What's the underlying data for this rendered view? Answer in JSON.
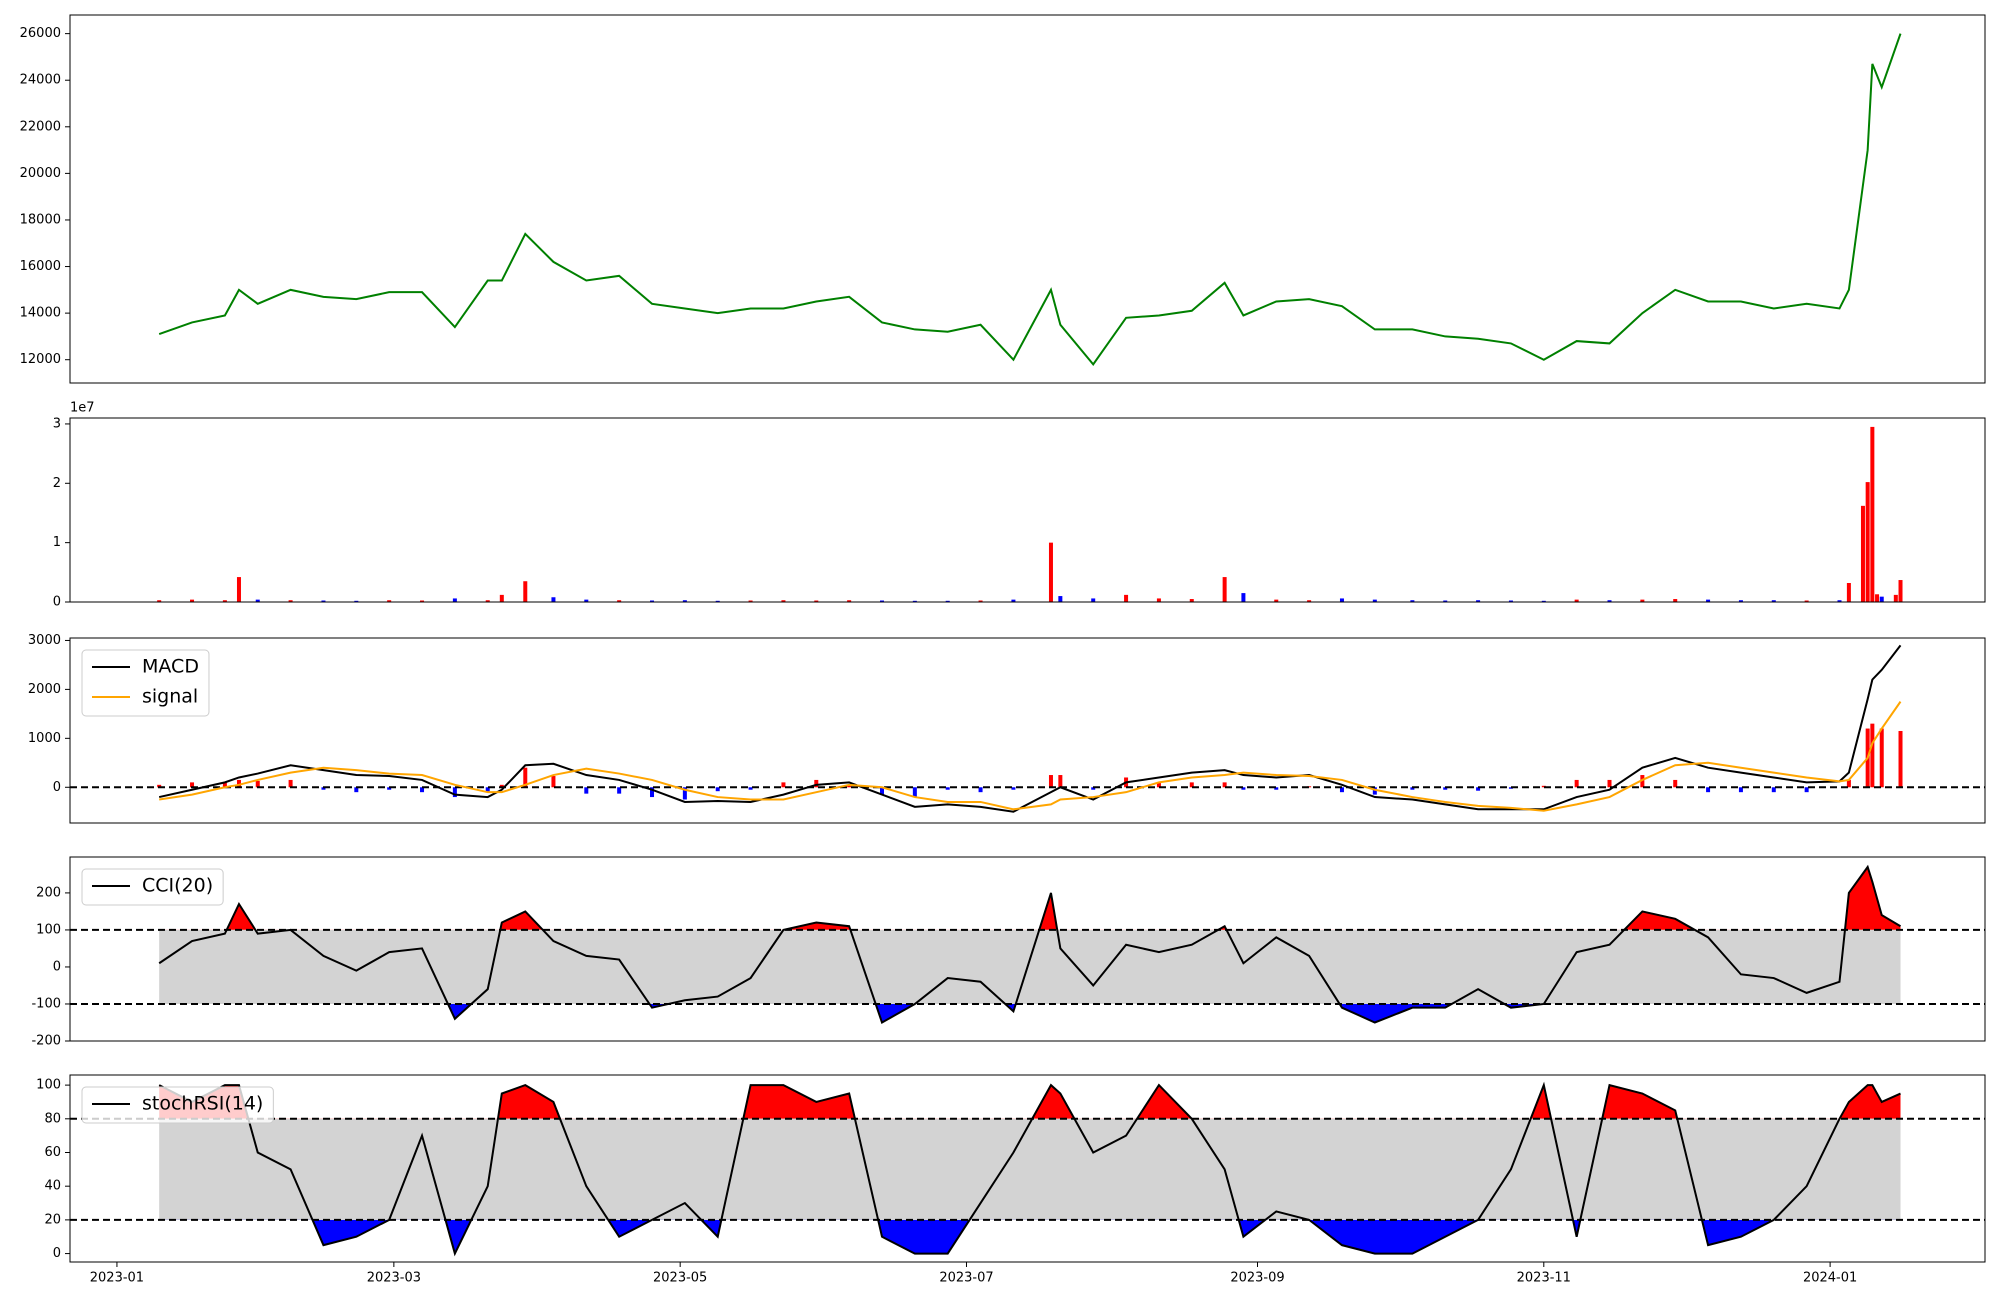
{
  "chart_data": [
    {
      "type": "line",
      "color": "green",
      "xlim": [
        "2022-12-22",
        "2024-02-03"
      ],
      "x": [
        "2023-01-10",
        "2023-01-17",
        "2023-01-24",
        "2023-01-27",
        "2023-01-31",
        "2023-02-07",
        "2023-02-14",
        "2023-02-21",
        "2023-02-28",
        "2023-03-07",
        "2023-03-14",
        "2023-03-21",
        "2023-03-24",
        "2023-03-29",
        "2023-04-04",
        "2023-04-11",
        "2023-04-18",
        "2023-04-25",
        "2023-05-02",
        "2023-05-09",
        "2023-05-16",
        "2023-05-23",
        "2023-05-30",
        "2023-06-06",
        "2023-06-13",
        "2023-06-20",
        "2023-06-27",
        "2023-07-04",
        "2023-07-11",
        "2023-07-19",
        "2023-07-21",
        "2023-07-28",
        "2023-08-04",
        "2023-08-11",
        "2023-08-18",
        "2023-08-25",
        "2023-08-29",
        "2023-09-05",
        "2023-09-12",
        "2023-09-19",
        "2023-09-26",
        "2023-10-04",
        "2023-10-11",
        "2023-10-18",
        "2023-10-25",
        "2023-11-01",
        "2023-11-08",
        "2023-11-15",
        "2023-11-22",
        "2023-11-29",
        "2023-12-06",
        "2023-12-13",
        "2023-12-20",
        "2023-12-27",
        "2024-01-03",
        "2024-01-05",
        "2024-01-09",
        "2024-01-10",
        "2024-01-12",
        "2024-01-16"
      ],
      "values": [
        13100,
        13600,
        13900,
        15000,
        14400,
        15000,
        14700,
        14600,
        14900,
        14900,
        13400,
        15400,
        15400,
        17400,
        16200,
        15400,
        15600,
        14400,
        14200,
        14000,
        14200,
        14200,
        14500,
        14700,
        13600,
        13300,
        13200,
        13500,
        12000,
        15000,
        13500,
        11800,
        13800,
        13900,
        14100,
        15300,
        13900,
        14500,
        14600,
        14300,
        13300,
        13300,
        13000,
        12900,
        12700,
        12000,
        12800,
        12700,
        14000,
        15000,
        14500,
        14500,
        14200,
        14400,
        14200,
        15000,
        21000,
        24700,
        23700,
        26000
      ],
      "ylim": [
        11000,
        26800
      ],
      "yticks": [
        12000,
        14000,
        16000,
        18000,
        20000,
        22000,
        24000,
        26000
      ]
    },
    {
      "type": "bar",
      "offset_text": "1e7",
      "xlim": [
        "2022-12-22",
        "2024-02-03"
      ],
      "x": [
        "2023-01-10",
        "2023-01-17",
        "2023-01-24",
        "2023-01-27",
        "2023-01-31",
        "2023-02-07",
        "2023-02-14",
        "2023-02-21",
        "2023-02-28",
        "2023-03-07",
        "2023-03-14",
        "2023-03-21",
        "2023-03-24",
        "2023-03-29",
        "2023-04-04",
        "2023-04-11",
        "2023-04-18",
        "2023-04-25",
        "2023-05-02",
        "2023-05-09",
        "2023-05-16",
        "2023-05-23",
        "2023-05-30",
        "2023-06-06",
        "2023-06-13",
        "2023-06-20",
        "2023-06-27",
        "2023-07-04",
        "2023-07-11",
        "2023-07-19",
        "2023-07-21",
        "2023-07-28",
        "2023-08-04",
        "2023-08-11",
        "2023-08-18",
        "2023-08-25",
        "2023-08-29",
        "2023-09-05",
        "2023-09-12",
        "2023-09-19",
        "2023-09-26",
        "2023-10-04",
        "2023-10-11",
        "2023-10-18",
        "2023-10-25",
        "2023-11-01",
        "2023-11-08",
        "2023-11-15",
        "2023-11-22",
        "2023-11-29",
        "2023-12-06",
        "2023-12-13",
        "2023-12-20",
        "2023-12-27",
        "2024-01-03",
        "2024-01-05",
        "2024-01-08",
        "2024-01-09",
        "2024-01-10",
        "2024-01-11",
        "2024-01-12",
        "2024-01-15",
        "2024-01-16"
      ],
      "values": [
        300000,
        400000,
        300000,
        4200000,
        400000,
        300000,
        250000,
        200000,
        300000,
        250000,
        600000,
        300000,
        1200000,
        3500000,
        800000,
        400000,
        300000,
        250000,
        300000,
        200000,
        250000,
        300000,
        250000,
        300000,
        250000,
        200000,
        200000,
        250000,
        400000,
        10000000,
        1000000,
        600000,
        1200000,
        600000,
        500000,
        4200000,
        1500000,
        400000,
        300000,
        600000,
        400000,
        300000,
        250000,
        300000,
        250000,
        200000,
        400000,
        300000,
        400000,
        500000,
        400000,
        300000,
        300000,
        250000,
        300000,
        3200000,
        16200000,
        20200000,
        29500000,
        1300000,
        900000,
        1200000,
        3700000
      ],
      "colors": [
        "red",
        "red",
        "red",
        "red",
        "blue",
        "red",
        "blue",
        "blue",
        "red",
        "red",
        "blue",
        "red",
        "red",
        "red",
        "blue",
        "blue",
        "red",
        "blue",
        "blue",
        "blue",
        "red",
        "red",
        "red",
        "red",
        "blue",
        "blue",
        "blue",
        "red",
        "blue",
        "red",
        "blue",
        "blue",
        "red",
        "red",
        "red",
        "red",
        "blue",
        "red",
        "red",
        "blue",
        "blue",
        "blue",
        "blue",
        "blue",
        "blue",
        "blue",
        "red",
        "blue",
        "red",
        "red",
        "blue",
        "blue",
        "blue",
        "red",
        "blue",
        "red",
        "red",
        "red",
        "red",
        "red",
        "blue",
        "red",
        "red"
      ],
      "ylim": [
        0,
        31000000
      ],
      "yticks": [
        0,
        {
          "value": 10000000,
          "label": "1"
        },
        {
          "value": 20000000,
          "label": "2"
        },
        {
          "value": 30000000,
          "label": "3"
        }
      ]
    },
    {
      "type": "macd",
      "legend": "upper left",
      "hline": 0,
      "xlim": [
        "2022-12-22",
        "2024-02-03"
      ],
      "x": [
        "2023-01-10",
        "2023-01-17",
        "2023-01-24",
        "2023-01-27",
        "2023-01-31",
        "2023-02-07",
        "2023-02-14",
        "2023-02-21",
        "2023-02-28",
        "2023-03-07",
        "2023-03-14",
        "2023-03-21",
        "2023-03-24",
        "2023-03-29",
        "2023-04-04",
        "2023-04-11",
        "2023-04-18",
        "2023-04-25",
        "2023-05-02",
        "2023-05-09",
        "2023-05-16",
        "2023-05-23",
        "2023-05-30",
        "2023-06-06",
        "2023-06-13",
        "2023-06-20",
        "2023-06-27",
        "2023-07-04",
        "2023-07-11",
        "2023-07-19",
        "2023-07-21",
        "2023-07-28",
        "2023-08-04",
        "2023-08-11",
        "2023-08-18",
        "2023-08-25",
        "2023-08-29",
        "2023-09-05",
        "2023-09-12",
        "2023-09-19",
        "2023-09-26",
        "2023-10-04",
        "2023-10-11",
        "2023-10-18",
        "2023-10-25",
        "2023-11-01",
        "2023-11-08",
        "2023-11-15",
        "2023-11-22",
        "2023-11-29",
        "2023-12-06",
        "2023-12-13",
        "2023-12-20",
        "2023-12-27",
        "2024-01-03",
        "2024-01-05",
        "2024-01-09",
        "2024-01-10",
        "2024-01-12",
        "2024-01-16"
      ],
      "series": [
        {
          "name": "MACD",
          "color": "black",
          "values": [
            -200,
            -50,
            100,
            200,
            280,
            450,
            350,
            250,
            230,
            150,
            -150,
            -200,
            -50,
            450,
            480,
            250,
            150,
            -50,
            -300,
            -280,
            -300,
            -150,
            50,
            100,
            -150,
            -400,
            -350,
            -400,
            -500,
            -100,
            0,
            -250,
            100,
            200,
            300,
            350,
            250,
            200,
            250,
            50,
            -200,
            -250,
            -350,
            -450,
            -450,
            -450,
            -200,
            -50,
            400,
            600,
            400,
            300,
            200,
            100,
            120,
            300,
            1800,
            2200,
            2400,
            2900
          ]
        },
        {
          "name": "signal",
          "color": "orange",
          "values": [
            -250,
            -150,
            0,
            50,
            150,
            300,
            400,
            350,
            280,
            250,
            50,
            -100,
            -100,
            50,
            250,
            380,
            280,
            150,
            -50,
            -200,
            -250,
            -250,
            -100,
            50,
            0,
            -200,
            -300,
            -300,
            -450,
            -350,
            -250,
            -200,
            -100,
            100,
            200,
            250,
            300,
            250,
            230,
            150,
            -50,
            -200,
            -300,
            -380,
            -420,
            -480,
            -350,
            -200,
            150,
            450,
            500,
            400,
            300,
            200,
            120,
            150,
            600,
            900,
            1200,
            1750
          ]
        }
      ],
      "histogram": {
        "up_color": "red",
        "down_color": "blue",
        "values": [
          50,
          100,
          100,
          150,
          130,
          150,
          -50,
          -100,
          -50,
          -100,
          -200,
          -100,
          50,
          400,
          230,
          -130,
          -130,
          -200,
          -250,
          -80,
          -50,
          100,
          150,
          50,
          -150,
          -200,
          -50,
          -100,
          -50,
          250,
          250,
          -50,
          200,
          100,
          100,
          100,
          -50,
          -50,
          20,
          -100,
          -150,
          -50,
          -50,
          -70,
          -30,
          30,
          150,
          150,
          250,
          150,
          -100,
          -100,
          -100,
          -100,
          0,
          150,
          1200,
          1300,
          1200,
          1150
        ]
      },
      "ylim": [
        -730,
        3050
      ],
      "yticks": [
        0,
        1000,
        2000,
        3000
      ]
    },
    {
      "type": "oscillator",
      "legend": "upper left",
      "thresholds": [
        -100,
        100
      ],
      "band_color": "lightgray",
      "above_color": "red",
      "below_color": "blue",
      "xlim": [
        "2022-12-22",
        "2024-02-03"
      ],
      "x": [
        "2023-01-10",
        "2023-01-17",
        "2023-01-24",
        "2023-01-27",
        "2023-01-31",
        "2023-02-07",
        "2023-02-14",
        "2023-02-21",
        "2023-02-28",
        "2023-03-07",
        "2023-03-14",
        "2023-03-21",
        "2023-03-24",
        "2023-03-29",
        "2023-04-04",
        "2023-04-11",
        "2023-04-18",
        "2023-04-25",
        "2023-05-02",
        "2023-05-09",
        "2023-05-16",
        "2023-05-23",
        "2023-05-30",
        "2023-06-06",
        "2023-06-13",
        "2023-06-20",
        "2023-06-27",
        "2023-07-04",
        "2023-07-11",
        "2023-07-19",
        "2023-07-21",
        "2023-07-28",
        "2023-08-04",
        "2023-08-11",
        "2023-08-18",
        "2023-08-25",
        "2023-08-29",
        "2023-09-05",
        "2023-09-12",
        "2023-09-19",
        "2023-09-26",
        "2023-10-04",
        "2023-10-11",
        "2023-10-18",
        "2023-10-25",
        "2023-11-01",
        "2023-11-08",
        "2023-11-15",
        "2023-11-22",
        "2023-11-29",
        "2023-12-06",
        "2023-12-13",
        "2023-12-20",
        "2023-12-27",
        "2024-01-03",
        "2024-01-05",
        "2024-01-09",
        "2024-01-10",
        "2024-01-12",
        "2024-01-16"
      ],
      "series": [
        {
          "name": "CCI(20)",
          "color": "black",
          "values": [
            10,
            70,
            90,
            170,
            90,
            100,
            30,
            -10,
            40,
            50,
            -140,
            -60,
            120,
            150,
            70,
            30,
            20,
            -110,
            -90,
            -80,
            -30,
            100,
            120,
            110,
            -150,
            -100,
            -30,
            -40,
            -120,
            200,
            50,
            -50,
            60,
            40,
            60,
            110,
            10,
            80,
            30,
            -110,
            -150,
            -110,
            -110,
            -60,
            -110,
            -100,
            40,
            60,
            150,
            130,
            80,
            -20,
            -30,
            -70,
            -40,
            200,
            270,
            230,
            140,
            110
          ]
        }
      ],
      "ylim": [
        -200,
        297
      ],
      "yticks": [
        -200,
        -100,
        0,
        100,
        200
      ]
    },
    {
      "type": "oscillator",
      "legend": "upper left",
      "thresholds": [
        20,
        80
      ],
      "band_color": "lightgray",
      "above_color": "red",
      "below_color": "blue",
      "xlim": [
        "2022-12-22",
        "2024-02-03"
      ],
      "x": [
        "2023-01-10",
        "2023-01-17",
        "2023-01-24",
        "2023-01-27",
        "2023-01-31",
        "2023-02-07",
        "2023-02-14",
        "2023-02-21",
        "2023-02-28",
        "2023-03-07",
        "2023-03-14",
        "2023-03-21",
        "2023-03-24",
        "2023-03-29",
        "2023-04-04",
        "2023-04-11",
        "2023-04-18",
        "2023-04-25",
        "2023-05-02",
        "2023-05-09",
        "2023-05-16",
        "2023-05-23",
        "2023-05-30",
        "2023-06-06",
        "2023-06-13",
        "2023-06-20",
        "2023-06-27",
        "2023-07-04",
        "2023-07-11",
        "2023-07-19",
        "2023-07-21",
        "2023-07-28",
        "2023-08-04",
        "2023-08-11",
        "2023-08-18",
        "2023-08-25",
        "2023-08-29",
        "2023-09-05",
        "2023-09-12",
        "2023-09-19",
        "2023-09-26",
        "2023-10-04",
        "2023-10-11",
        "2023-10-18",
        "2023-10-25",
        "2023-11-01",
        "2023-11-08",
        "2023-11-15",
        "2023-11-22",
        "2023-11-29",
        "2023-12-06",
        "2023-12-13",
        "2023-12-20",
        "2023-12-27",
        "2024-01-03",
        "2024-01-05",
        "2024-01-09",
        "2024-01-10",
        "2024-01-12",
        "2024-01-16"
      ],
      "series": [
        {
          "name": "stochRSI(14)",
          "color": "black",
          "values": [
            100,
            90,
            100,
            100,
            60,
            50,
            5,
            10,
            20,
            70,
            0,
            40,
            95,
            100,
            90,
            40,
            10,
            20,
            30,
            10,
            100,
            100,
            90,
            95,
            10,
            0,
            0,
            30,
            60,
            100,
            95,
            60,
            70,
            100,
            80,
            50,
            10,
            25,
            20,
            5,
            0,
            0,
            10,
            20,
            50,
            100,
            10,
            100,
            95,
            85,
            5,
            10,
            20,
            40,
            80,
            90,
            100,
            100,
            90,
            95
          ]
        }
      ],
      "ylim": [
        -5,
        106
      ],
      "yticks": [
        0,
        20,
        40,
        60,
        80,
        100
      ],
      "xticks": [
        {
          "value": "2023-01-01",
          "label": "2023-01"
        },
        {
          "value": "2023-03-01",
          "label": "2023-03"
        },
        {
          "value": "2023-05-01",
          "label": "2023-05"
        },
        {
          "value": "2023-07-01",
          "label": "2023-07"
        },
        {
          "value": "2023-09-01",
          "label": "2023-09"
        },
        {
          "value": "2023-11-01",
          "label": "2023-11"
        },
        {
          "value": "2024-01-01",
          "label": "2024-01"
        }
      ]
    }
  ]
}
